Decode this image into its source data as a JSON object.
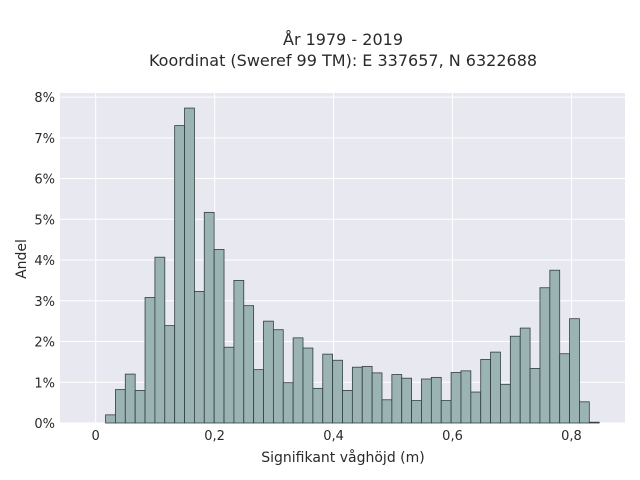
{
  "chart_data": {
    "type": "bar",
    "title_lines": [
      "År 1979 - 2019",
      "Koordinat (Sweref 99 TM): E 337657, N 6322688"
    ],
    "xlabel": "Signifikant våghöjd (m)",
    "ylabel": "Andel",
    "x_ticks": [
      "0",
      "0,2",
      "0,4",
      "0,6",
      "0,8"
    ],
    "x_tick_values": [
      0,
      0.2,
      0.4,
      0.6,
      0.8
    ],
    "y_ticks": [
      "0%",
      "1%",
      "2%",
      "3%",
      "4%",
      "5%",
      "6%",
      "7%",
      "8%"
    ],
    "y_tick_values": [
      0,
      1,
      2,
      3,
      4,
      5,
      6,
      7,
      8
    ],
    "xlim": [
      -0.06,
      0.89
    ],
    "ylim": [
      0,
      8.1
    ],
    "bin_width": 0.0166,
    "bin_start": 0.0166,
    "values": [
      0.2,
      0.82,
      1.2,
      0.8,
      3.08,
      4.07,
      2.39,
      7.3,
      7.73,
      3.23,
      5.17,
      4.26,
      1.86,
      3.5,
      2.88,
      1.31,
      2.5,
      2.29,
      0.99,
      2.09,
      1.84,
      0.85,
      1.69,
      1.54,
      0.8,
      1.37,
      1.39,
      1.23,
      0.57,
      1.19,
      1.1,
      0.55,
      1.08,
      1.12,
      0.55,
      1.24,
      1.28,
      0.76,
      1.56,
      1.74,
      0.95,
      2.13,
      2.33,
      1.34,
      3.32,
      3.75,
      1.7,
      2.56,
      0.52,
      0.02
    ],
    "grid": true,
    "colors": {
      "bar_fill": "#9bb3b3",
      "bar_edge": "#2f3f3f",
      "plot_bg": "#e8e8f0",
      "grid": "#ffffff"
    }
  }
}
